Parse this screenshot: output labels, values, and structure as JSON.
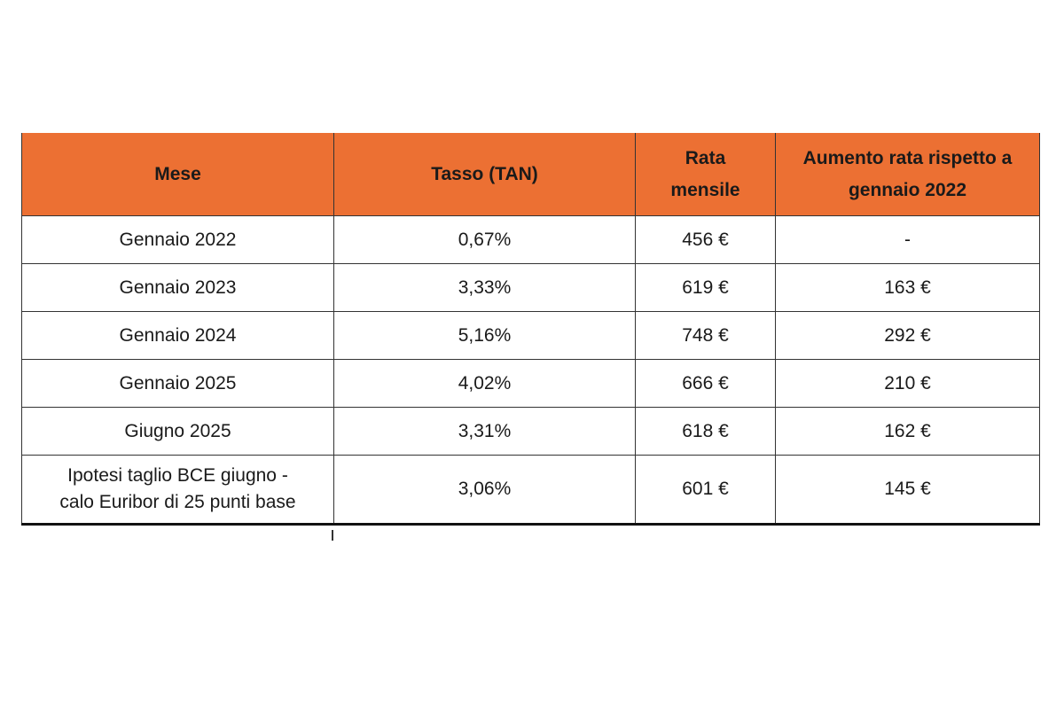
{
  "table": {
    "headers": [
      "Mese",
      "Tasso (TAN)",
      "Rata mensile",
      "Aumento rata rispetto a gennaio 2022"
    ],
    "header_lines": {
      "c3": [
        "Rata",
        "mensile"
      ],
      "c4": [
        "Aumento rata rispetto a",
        "gennaio 2022"
      ]
    },
    "rows": [
      {
        "mese": "Gennaio 2022",
        "tasso": "0,67%",
        "rata": "456 €",
        "aumento": "-"
      },
      {
        "mese": "Gennaio 2023",
        "tasso": "3,33%",
        "rata": "619 €",
        "aumento": "163 €"
      },
      {
        "mese": "Gennaio 2024",
        "tasso": "5,16%",
        "rata": "748 €",
        "aumento": "292 €"
      },
      {
        "mese": "Gennaio 2025",
        "tasso": "4,02%",
        "rata": "666 €",
        "aumento": "210 €"
      },
      {
        "mese": "Giugno 2025",
        "tasso": "3,31%",
        "rata": "618 €",
        "aumento": "162 €"
      },
      {
        "mese_lines": [
          "Ipotesi taglio BCE giugno -",
          "calo Euribor di 25 punti base"
        ],
        "tasso": "3,06%",
        "rata": "601 €",
        "aumento": "145 €"
      }
    ]
  },
  "colors": {
    "header_bg": "#ec7033",
    "border": "#333333"
  }
}
